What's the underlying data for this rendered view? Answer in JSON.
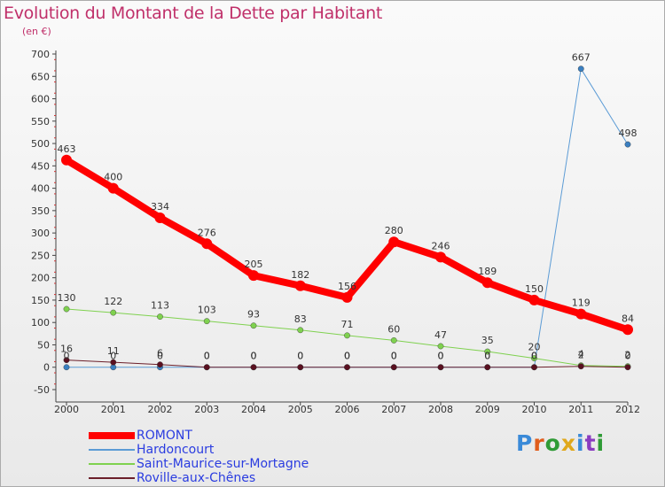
{
  "title": "Evolution du Montant de la Dette par Habitant",
  "subtitle": "(en €)",
  "brand": {
    "letters": [
      "P",
      "r",
      "o",
      "x",
      "i",
      "t",
      "i"
    ],
    "colors": [
      "#3a8ad8",
      "#e05d1c",
      "#2f9b36",
      "#e0a81c",
      "#3a8ad8",
      "#8a3cc0",
      "#2f9b36"
    ]
  },
  "chart_data": {
    "type": "line",
    "categories": [
      "2000",
      "2001",
      "2002",
      "2003",
      "2004",
      "2005",
      "2006",
      "2007",
      "2008",
      "2009",
      "2010",
      "2011",
      "2012"
    ],
    "y_ticks": [
      "-50",
      "0",
      "50",
      "100",
      "150",
      "200",
      "250",
      "300",
      "350",
      "400",
      "450",
      "500",
      "550",
      "600",
      "650",
      "700"
    ],
    "ylim": [
      -50,
      700
    ],
    "grid": false,
    "legend_position": "bottom-left",
    "series": [
      {
        "name": "ROMONT",
        "color": "#ff0000",
        "width": 8,
        "values": [
          463,
          400,
          334,
          276,
          205,
          182,
          156,
          280,
          246,
          189,
          150,
          119,
          84
        ],
        "labels": [
          "463",
          "400",
          "334",
          "276",
          "205",
          "182",
          "156",
          "280",
          "246",
          "189",
          "150",
          "119",
          "84"
        ]
      },
      {
        "name": "Hardoncourt",
        "color": "#5b9bd5",
        "width": 1,
        "values": [
          0,
          0,
          0,
          0,
          0,
          0,
          0,
          0,
          0,
          0,
          0,
          667,
          498
        ],
        "labels": [
          "0",
          "0",
          "0",
          "0",
          "0",
          "0",
          "0",
          "0",
          "0",
          "0",
          "0",
          "667",
          "498"
        ]
      },
      {
        "name": "Saint-Maurice-sur-Mortagne",
        "color": "#7fd14f",
        "width": 1,
        "values": [
          130,
          122,
          113,
          103,
          93,
          83,
          71,
          60,
          47,
          35,
          20,
          4,
          2
        ],
        "labels": [
          "130",
          "122",
          "113",
          "103",
          "93",
          "83",
          "71",
          "60",
          "47",
          "35",
          "20",
          "4",
          "2"
        ]
      },
      {
        "name": "Roville-aux-Chênes",
        "color": "#6b1f2a",
        "width": 1,
        "values": [
          16,
          11,
          6,
          0,
          0,
          0,
          0,
          0,
          0,
          0,
          0,
          2,
          0
        ],
        "labels": [
          "16",
          "11",
          "6",
          "0",
          "0",
          "0",
          "0",
          "0",
          "0",
          "0",
          "0",
          "2",
          "0"
        ]
      }
    ]
  }
}
